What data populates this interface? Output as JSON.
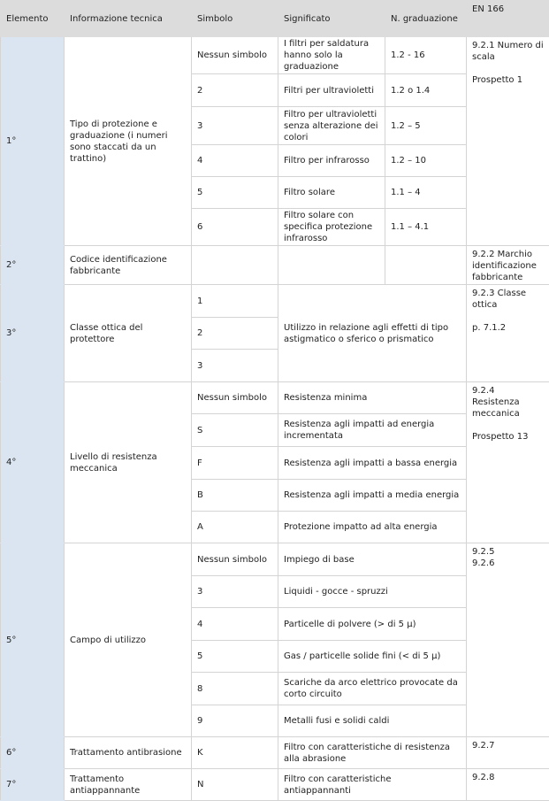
{
  "header": [
    "Elemento",
    "Informazione tecnica",
    "Simbolo",
    "Significato",
    "N. graduazione",
    "EN 166"
  ],
  "colors": {
    "header_bg": "#dcdcdc",
    "element_col_bg": "#dbe5f1",
    "border": "#d4d4d4"
  },
  "sections": [
    {
      "element": "1°",
      "info": "Tipo di protezione e graduazione (i numeri sono staccati da un trattino)",
      "en": "9.2.1 Numero di scala\n\nProspetto 1",
      "merged_meaning": false,
      "rows": [
        {
          "symbol": "Nessun simbolo",
          "meaning": "I filtri per saldatura hanno solo la graduazione",
          "grad": "1.2 - 16"
        },
        {
          "symbol": "2",
          "meaning": "Filtri per ultravioletti",
          "grad": "1.2 o 1.4"
        },
        {
          "symbol": "3",
          "meaning": "Filtro per ultravioletti senza alterazione dei colori",
          "grad": "1.2 – 5"
        },
        {
          "symbol": "4",
          "meaning": "Filtro per infrarosso",
          "grad": "1.2 – 10"
        },
        {
          "symbol": "5",
          "meaning": "Filtro solare",
          "grad": "1.1 – 4"
        },
        {
          "symbol": "6",
          "meaning": "Filtro solare con specifica protezione infrarosso",
          "grad": "1.1 – 4.1"
        }
      ]
    },
    {
      "element": "2°",
      "info": "Codice identificazione fabbricante",
      "en": "9.2.2 Marchio identificazione fabbricante",
      "merged_meaning": false,
      "rows": [
        {
          "symbol": "",
          "meaning": "",
          "grad": ""
        }
      ]
    },
    {
      "element": "3°",
      "info": "Classe ottica del protettore",
      "en": "9.2.3 Classe ottica\n\np. 7.1.2",
      "merged_meaning": "block",
      "block_meaning": "Utilizzo in relazione agli effetti di tipo astigmatico o sferico o prismatico",
      "rows": [
        {
          "symbol": "1"
        },
        {
          "symbol": "2"
        },
        {
          "symbol": "3"
        }
      ]
    },
    {
      "element": "4°",
      "info": "Livello di resistenza meccanica",
      "en": "9.2.4 Resistenza meccanica\n\nProspetto 13",
      "merged_meaning": "row",
      "rows": [
        {
          "symbol": "Nessun simbolo",
          "meaning": "Resistenza minima"
        },
        {
          "symbol": "S",
          "meaning": "Resistenza agli impatti ad energia incrementata"
        },
        {
          "symbol": "F",
          "meaning": "Resistenza agli impatti a bassa energia"
        },
        {
          "symbol": "B",
          "meaning": "Resistenza agli impatti a media energia"
        },
        {
          "symbol": "A",
          "meaning": "Protezione impatto ad alta energia"
        }
      ]
    },
    {
      "element": "5°",
      "info": "Campo di utilizzo",
      "en": "9.2.5\n9.2.6",
      "merged_meaning": "row",
      "rows": [
        {
          "symbol": "Nessun simbolo",
          "meaning": "Impiego di base"
        },
        {
          "symbol": "3",
          "meaning": "Liquidi - gocce - spruzzi"
        },
        {
          "symbol": "4",
          "meaning": "Particelle di polvere (> di 5 μ)"
        },
        {
          "symbol": "5",
          "meaning": "Gas / particelle solide fini (< di 5 μ)"
        },
        {
          "symbol": "8",
          "meaning": "Scariche da arco elettrico provocate da corto circuito"
        },
        {
          "symbol": "9",
          "meaning": "Metalli fusi e solidi caldi"
        }
      ]
    },
    {
      "element": "6°",
      "info": "Trattamento antibrasione",
      "en": "9.2.7",
      "merged_meaning": "row",
      "rows": [
        {
          "symbol": "K",
          "meaning": "Filtro con caratteristiche di resistenza alla abrasione"
        }
      ]
    },
    {
      "element": "7°",
      "info": "Trattamento antiappannante",
      "en": "9.2.8",
      "merged_meaning": "row",
      "rows": [
        {
          "symbol": "N",
          "meaning": "Filtro con caratteristiche antiappannanti"
        }
      ]
    }
  ]
}
